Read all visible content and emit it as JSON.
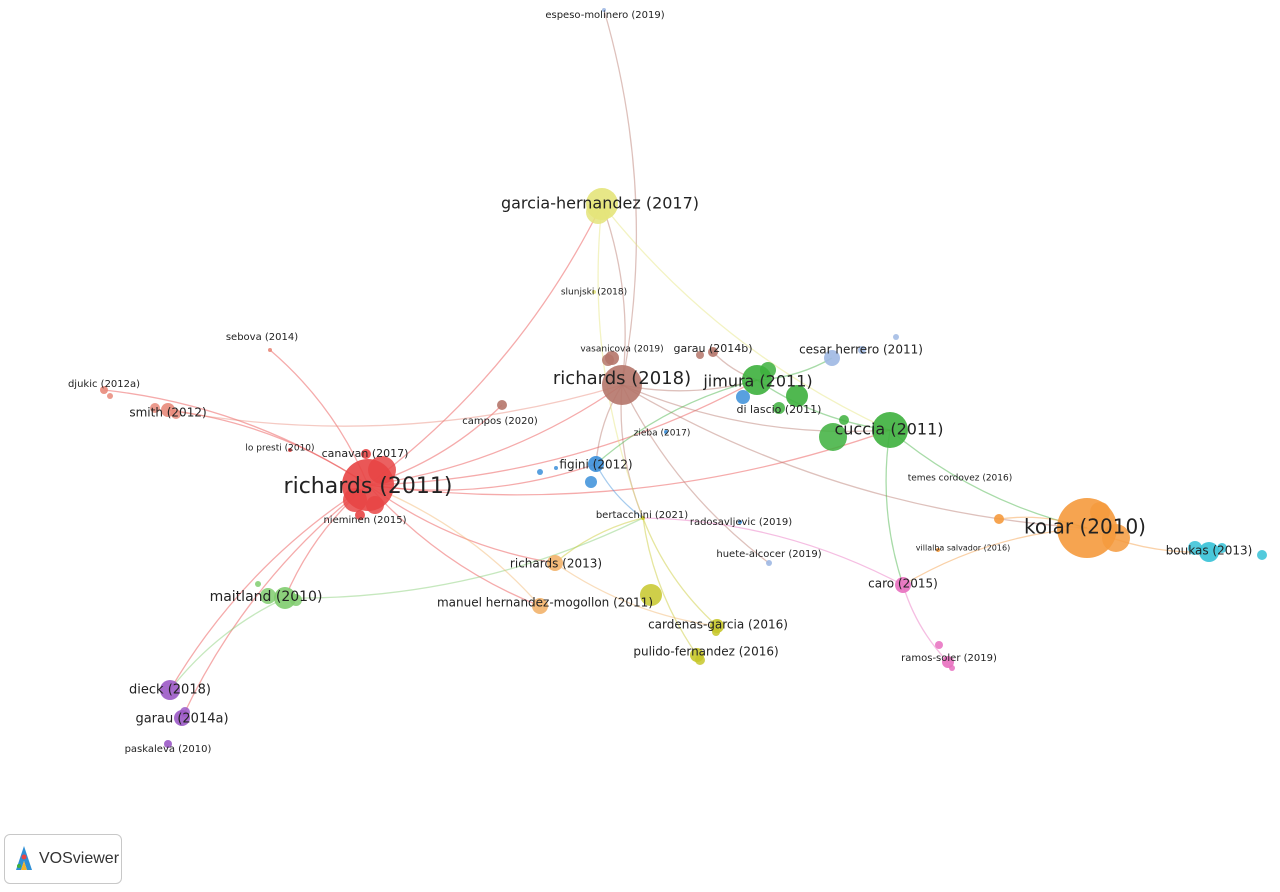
{
  "brand": {
    "name": "VOSviewer",
    "logo_icon": "vosviewer-logo-icon"
  },
  "network": {
    "cluster_colors": {
      "red": "#e84545",
      "brown": "#b5766a",
      "green": "#3db03d",
      "orange": "#f59a3d",
      "yellow": "#c7c72a",
      "pale-yellow": "#e4e47a",
      "blue": "#3b8fd9",
      "lightblue": "#9fb8e3",
      "teal": "#35c1d6",
      "purple": "#9b59c7",
      "lightgreen": "#80cc6e",
      "pink": "#e86fbf",
      "light-orange": "#f2b36b",
      "salmon": "#e88a7a"
    },
    "nodes": [
      {
        "id": "richards2011",
        "label": "richards (2011)",
        "cluster": "red"
      },
      {
        "id": "canavan2017",
        "label": "canavan (2017)",
        "cluster": "red"
      },
      {
        "id": "nieminen2015",
        "label": "nieminen (2015)",
        "cluster": "red"
      },
      {
        "id": "lopresti2010",
        "label": "lo presti (2010)",
        "cluster": "red"
      },
      {
        "id": "smith2012",
        "label": "smith (2012)",
        "cluster": "salmon"
      },
      {
        "id": "djukic2012a",
        "label": "djukic (2012a)",
        "cluster": "salmon"
      },
      {
        "id": "sebova2014",
        "label": "sebova (2014)",
        "cluster": "salmon"
      },
      {
        "id": "richards2018",
        "label": "richards (2018)",
        "cluster": "brown"
      },
      {
        "id": "campos2020",
        "label": "campos (2020)",
        "cluster": "brown"
      },
      {
        "id": "garau2014b",
        "label": "garau (2014b)",
        "cluster": "brown"
      },
      {
        "id": "vasanicova2019",
        "label": "vasanicova (2019)",
        "cluster": "brown"
      },
      {
        "id": "garciahernandez2017",
        "label": "garcia-hernandez (2017)",
        "cluster": "pale-yellow"
      },
      {
        "id": "slunjski2018",
        "label": "slunjski (2018)",
        "cluster": "pale-yellow"
      },
      {
        "id": "espesomolinero2019",
        "label": "espeso-molinero (2019)",
        "cluster": "lightblue"
      },
      {
        "id": "jimura2011",
        "label": "jimura (2011)",
        "cluster": "green"
      },
      {
        "id": "dilascio2011",
        "label": "di lascio (2011)",
        "cluster": "green"
      },
      {
        "id": "cuccia2011",
        "label": "cuccia (2011)",
        "cluster": "green"
      },
      {
        "id": "cesarherrero2011",
        "label": "cesar herrero (2011)",
        "cluster": "lightblue"
      },
      {
        "id": "figini2012",
        "label": "figini (2012)",
        "cluster": "blue"
      },
      {
        "id": "zieba2017",
        "label": "zieba (2017)",
        "cluster": "blue"
      },
      {
        "id": "kolar2010",
        "label": "kolar (2010)",
        "cluster": "orange"
      },
      {
        "id": "temescordovez2016",
        "label": "temes cordovez (2016)",
        "cluster": "orange"
      },
      {
        "id": "villalbasalvador2016",
        "label": "villalba salvador (2016)",
        "cluster": "orange"
      },
      {
        "id": "boukas2013",
        "label": "boukas (2013)",
        "cluster": "teal"
      },
      {
        "id": "caro2015",
        "label": "caro (2015)",
        "cluster": "pink"
      },
      {
        "id": "ramossoler2019",
        "label": "ramos-soler (2019)",
        "cluster": "pink"
      },
      {
        "id": "hutealcocer2019",
        "label": "huete-alcocer (2019)",
        "cluster": "lightblue"
      },
      {
        "id": "radosavljevic2019",
        "label": "radosavljevic (2019)",
        "cluster": "blue"
      },
      {
        "id": "bertacchini2021",
        "label": "bertacchini (2021)",
        "cluster": "yellow"
      },
      {
        "id": "richards2013",
        "label": "richards (2013)",
        "cluster": "light-orange"
      },
      {
        "id": "manuelhm2011",
        "label": "manuel hernandez-mogollon (2011)",
        "cluster": "light-orange"
      },
      {
        "id": "cardenasgarcia2016",
        "label": "cardenas-garcia (2016)",
        "cluster": "yellow"
      },
      {
        "id": "pulidofernandez2016",
        "label": "pulido-fernandez (2016)",
        "cluster": "yellow"
      },
      {
        "id": "maitland2010",
        "label": "maitland (2010)",
        "cluster": "lightgreen"
      },
      {
        "id": "dieck2018",
        "label": "dieck (2018)",
        "cluster": "purple"
      },
      {
        "id": "garau2014a",
        "label": "garau (2014a)",
        "cluster": "purple"
      },
      {
        "id": "paskaleva2010",
        "label": "paskaleva (2010)",
        "cluster": "purple"
      }
    ],
    "links": [
      [
        "richards2011",
        "richards2018"
      ],
      [
        "richards2011",
        "smith2012"
      ],
      [
        "richards2011",
        "djukic2012a"
      ],
      [
        "richards2011",
        "sebova2014"
      ],
      [
        "richards2011",
        "maitland2010"
      ],
      [
        "richards2011",
        "dieck2018"
      ],
      [
        "richards2011",
        "garau2014a"
      ],
      [
        "richards2011",
        "figini2012"
      ],
      [
        "richards2011",
        "richards2013"
      ],
      [
        "richards2011",
        "manuelhm2011"
      ],
      [
        "richards2011",
        "jimura2011"
      ],
      [
        "richards2011",
        "garciahernandez2017"
      ],
      [
        "richards2011",
        "campos2020"
      ],
      [
        "richards2011",
        "cuccia2011"
      ],
      [
        "smith2012",
        "richards2018"
      ],
      [
        "maitland2010",
        "bertacchini2021"
      ],
      [
        "maitland2010",
        "dieck2018"
      ],
      [
        "richards2018",
        "jimura2011"
      ],
      [
        "richards2018",
        "cuccia2011"
      ],
      [
        "richards2018",
        "garciahernandez2017"
      ],
      [
        "richards2018",
        "figini2012"
      ],
      [
        "richards2018",
        "bertacchini2021"
      ],
      [
        "richards2018",
        "kolar2010"
      ],
      [
        "richards2018",
        "hutealcocer2019"
      ],
      [
        "richards2018",
        "espesomolinero2019"
      ],
      [
        "garciahernandez2017",
        "bertacchini2021"
      ],
      [
        "garciahernandez2017",
        "cuccia2011"
      ],
      [
        "jimura2011",
        "cuccia2011"
      ],
      [
        "jimura2011",
        "cesarherrero2011"
      ],
      [
        "jimura2011",
        "figini2012"
      ],
      [
        "cuccia2011",
        "kolar2010"
      ],
      [
        "cuccia2011",
        "caro2015"
      ],
      [
        "kolar2010",
        "boukas2013"
      ],
      [
        "kolar2010",
        "caro2015"
      ],
      [
        "kolar2010",
        "temescordovez2016"
      ],
      [
        "caro2015",
        "ramossoler2019"
      ],
      [
        "caro2015",
        "bertacchini2021"
      ],
      [
        "bertacchini2021",
        "cardenasgarcia2016"
      ],
      [
        "bertacchini2021",
        "pulidofernandez2016"
      ],
      [
        "bertacchini2021",
        "richards2013"
      ],
      [
        "richards2013",
        "cardenasgarcia2016"
      ],
      [
        "manuelhm2011",
        "richards2011"
      ],
      [
        "figini2012",
        "bertacchini2021"
      ],
      [
        "garau2014b",
        "jimura2011"
      ]
    ]
  }
}
